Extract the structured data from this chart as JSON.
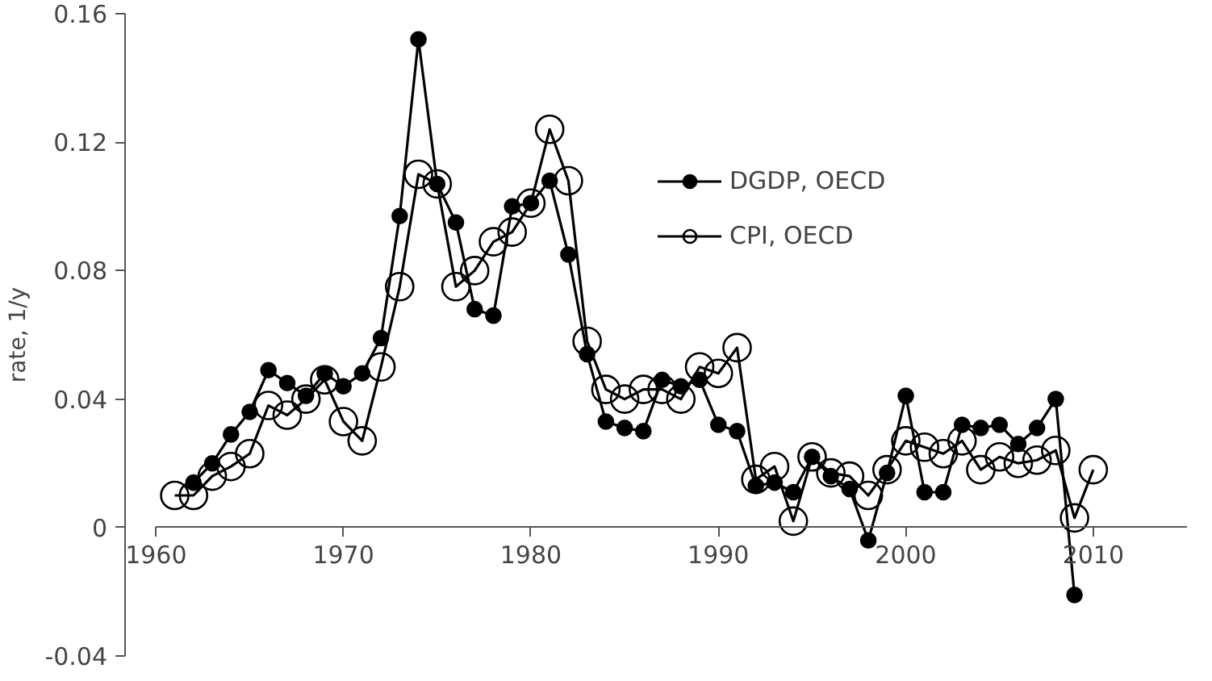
{
  "chart_data": {
    "type": "line",
    "ylabel": "rate, 1/y",
    "xlim": [
      1960,
      2015
    ],
    "ylim": [
      -0.04,
      0.16
    ],
    "xticks": [
      1960,
      1970,
      1980,
      1990,
      2000,
      2010
    ],
    "yticks": [
      {
        "value": -0.04,
        "label": "-0.04"
      },
      {
        "value": 0,
        "label": "0"
      },
      {
        "value": 0.04,
        "label": "0.04"
      },
      {
        "value": 0.08,
        "label": "0.08"
      },
      {
        "value": 0.12,
        "label": "0.12"
      },
      {
        "value": 0.16,
        "label": "0.16"
      }
    ],
    "grid": false,
    "legend": "top right",
    "marker": "circle",
    "line_style": "solid",
    "series": [
      {
        "name": "DGDP, OECD",
        "color": "#000000",
        "x": [
          1962,
          1963,
          1964,
          1965,
          1966,
          1967,
          1968,
          1969,
          1970,
          1971,
          1972,
          1973,
          1974,
          1975,
          1976,
          1977,
          1978,
          1979,
          1980,
          1981,
          1982,
          1983,
          1984,
          1985,
          1986,
          1987,
          1988,
          1989,
          1990,
          1991,
          1992,
          1993,
          1994,
          1995,
          1996,
          1997,
          1998,
          1999,
          2000,
          2001,
          2002,
          2003,
          2004,
          2005,
          2006,
          2007,
          2008,
          2009
        ],
        "values": [
          0.014,
          0.02,
          0.029,
          0.036,
          0.049,
          0.045,
          0.041,
          0.048,
          0.044,
          0.048,
          0.059,
          0.097,
          0.152,
          0.107,
          0.095,
          0.068,
          0.066,
          0.1,
          0.101,
          0.108,
          0.085,
          0.054,
          0.033,
          0.031,
          0.03,
          0.046,
          0.044,
          0.046,
          0.032,
          0.03,
          0.013,
          0.014,
          0.011,
          0.022,
          0.016,
          0.012,
          -0.004,
          0.017,
          0.041,
          0.011,
          0.011,
          0.032,
          0.031,
          0.032,
          0.026,
          0.031,
          0.04,
          -0.021
        ]
      },
      {
        "name": "CPI, OECD",
        "color": "#000000",
        "x": [
          1961,
          1962,
          1963,
          1964,
          1965,
          1966,
          1967,
          1968,
          1969,
          1970,
          1971,
          1972,
          1973,
          1974,
          1975,
          1976,
          1977,
          1978,
          1979,
          1980,
          1981,
          1982,
          1983,
          1984,
          1985,
          1986,
          1987,
          1988,
          1989,
          1990,
          1991,
          1992,
          1993,
          1994,
          1995,
          1996,
          1997,
          1998,
          1999,
          2000,
          2001,
          2002,
          2003,
          2004,
          2005,
          2006,
          2007,
          2008,
          2009,
          2010
        ],
        "values": [
          0.01,
          0.01,
          0.016,
          0.019,
          0.023,
          0.038,
          0.035,
          0.04,
          0.046,
          0.033,
          0.027,
          0.05,
          0.075,
          0.11,
          0.107,
          0.075,
          0.08,
          0.089,
          0.092,
          0.101,
          0.124,
          0.108,
          0.058,
          0.043,
          0.04,
          0.043,
          0.043,
          0.04,
          0.05,
          0.048,
          0.056,
          0.015,
          0.019,
          0.002,
          0.022,
          0.017,
          0.016,
          0.01,
          0.018,
          0.027,
          0.025,
          0.023,
          0.027,
          0.018,
          0.022,
          0.02,
          0.021,
          0.024,
          0.003,
          0.018
        ]
      }
    ]
  }
}
